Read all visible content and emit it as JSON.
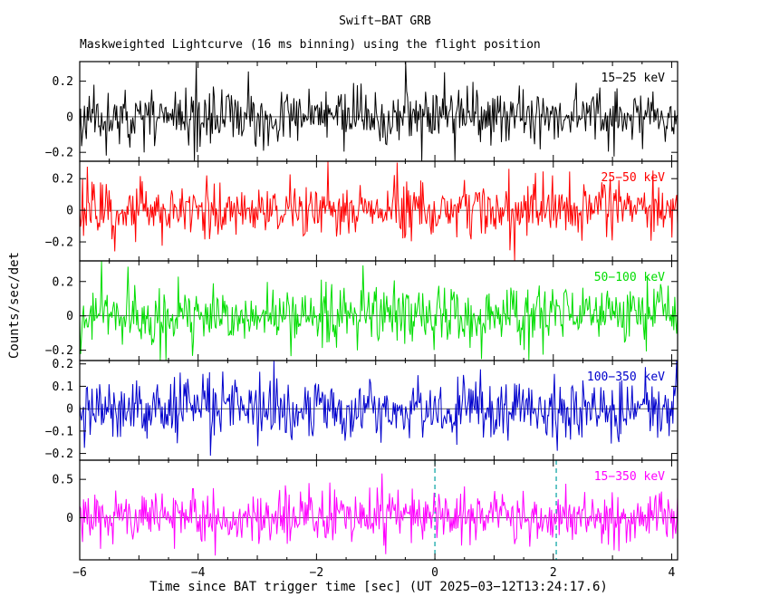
{
  "title": "Swift−BAT GRB",
  "subtitle": "Maskweighted Lightcurve (16 ms binning) using the flight position",
  "xlabel": "Time since BAT trigger time [sec] (UT 2025−03−12T13:24:17.6)",
  "ylabel": "Counts/sec/det",
  "chart_data": {
    "type": "line",
    "title": "Swift−BAT GRB",
    "subtitle": "Maskweighted Lightcurve (16 ms binning) using the flight position",
    "xlabel": "Time since BAT trigger time [sec] (UT 2025−03−12T13:24:17.6)",
    "ylabel": "Counts/sec/det",
    "x_range": [
      -6,
      4.1
    ],
    "x_ticks": [
      -6,
      -4,
      -2,
      0,
      2,
      4
    ],
    "x_tick_labels": [
      "−6",
      "−4",
      "−2",
      "0",
      "2",
      "4"
    ],
    "bin_seconds": 0.016,
    "n_points": 632,
    "grid": false,
    "trigger_marker_x": [
      0,
      2.05
    ],
    "trigger_marker_color": "#00a0a0",
    "panels": [
      {
        "label": "15−25 keV",
        "color": "#000000",
        "ylim": [
          -0.25,
          0.31
        ],
        "yticks": [
          0.2,
          0,
          -0.2
        ],
        "ytick_labels": [
          "0.2",
          "0",
          "−0.2"
        ],
        "mean": 0,
        "sigma": 0.075,
        "seed": 11
      },
      {
        "label": "25−50 keV",
        "color": "#ff0000",
        "ylim": [
          -0.32,
          0.31
        ],
        "yticks": [
          0.2,
          0,
          -0.2
        ],
        "ytick_labels": [
          "0.2",
          "0",
          "−0.2"
        ],
        "mean": 0,
        "sigma": 0.088,
        "seed": 22
      },
      {
        "label": "50−100 keV",
        "color": "#00dd00",
        "ylim": [
          -0.26,
          0.32
        ],
        "yticks": [
          0.2,
          0,
          -0.2
        ],
        "ytick_labels": [
          "0.2",
          "0",
          "−0.2"
        ],
        "mean": 0,
        "sigma": 0.082,
        "seed": 33
      },
      {
        "label": "100−350 keV",
        "color": "#0000cc",
        "ylim": [
          -0.23,
          0.215
        ],
        "yticks": [
          0.2,
          0.1,
          0,
          -0.1,
          -0.2
        ],
        "ytick_labels": [
          "0.2",
          "0.1",
          "0",
          "−0.1",
          "−0.2"
        ],
        "mean": 0,
        "sigma": 0.066,
        "seed": 44
      },
      {
        "label": "15−350 keV",
        "color": "#ff00ff",
        "ylim": [
          -0.55,
          0.75
        ],
        "yticks": [
          0.5,
          0
        ],
        "ytick_labels": [
          "0.5",
          "0"
        ],
        "mean": 0,
        "sigma": 0.17,
        "seed": 55
      }
    ]
  }
}
